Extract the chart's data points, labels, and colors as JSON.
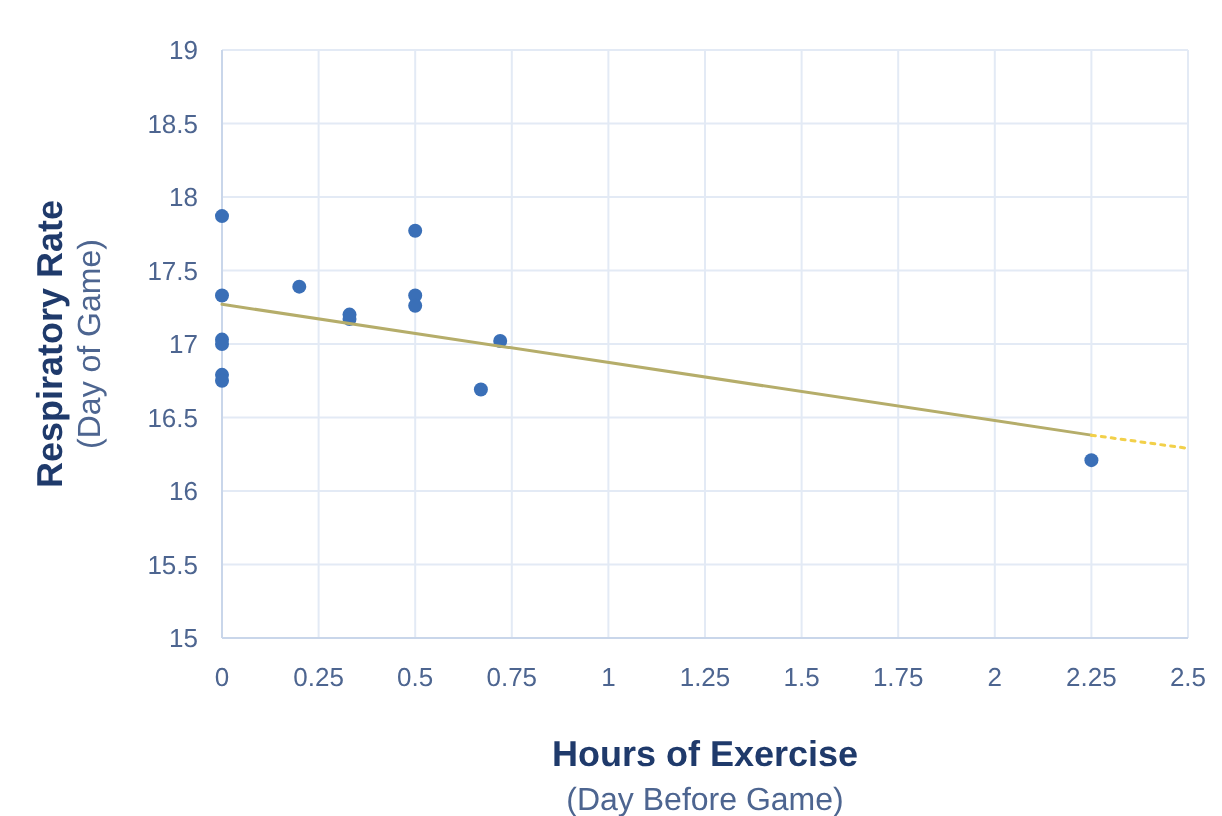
{
  "chart_data": {
    "type": "scatter",
    "xlabel": "Hours of Exercise\n(Day Before Game)",
    "ylabel": "Respiratory Rate\n(Day of Game)",
    "xlim": [
      0,
      2.5
    ],
    "ylim": [
      15,
      19
    ],
    "xticks": [
      0,
      0.25,
      0.5,
      0.75,
      1,
      1.25,
      1.5,
      1.75,
      2,
      2.25,
      2.5
    ],
    "yticks": [
      15,
      15.5,
      16,
      16.5,
      17,
      17.5,
      18,
      18.5,
      19
    ],
    "grid": true,
    "series": [
      {
        "color": "#3a6fb7",
        "marker": "circle",
        "x": [
          0,
          0,
          0,
          0,
          0,
          0,
          0.2,
          0.33,
          0.33,
          0.5,
          0.5,
          0.5,
          0.67,
          0.72,
          2.25
        ],
        "values": [
          17.87,
          17.33,
          17.03,
          17.0,
          16.79,
          16.75,
          17.39,
          17.2,
          17.17,
          17.77,
          17.33,
          17.26,
          16.69,
          17.02,
          16.21
        ]
      },
      {
        "type": "line",
        "color": "#b5ad6a",
        "line_style": "solid",
        "marker": "none",
        "x": [
          0,
          2.25
        ],
        "values": [
          17.27,
          16.38
        ]
      },
      {
        "type": "line",
        "color": "#f2d04a",
        "line_style": "dotted",
        "marker": "none",
        "x": [
          2.25,
          2.5
        ],
        "values": [
          16.38,
          16.29
        ]
      }
    ]
  }
}
